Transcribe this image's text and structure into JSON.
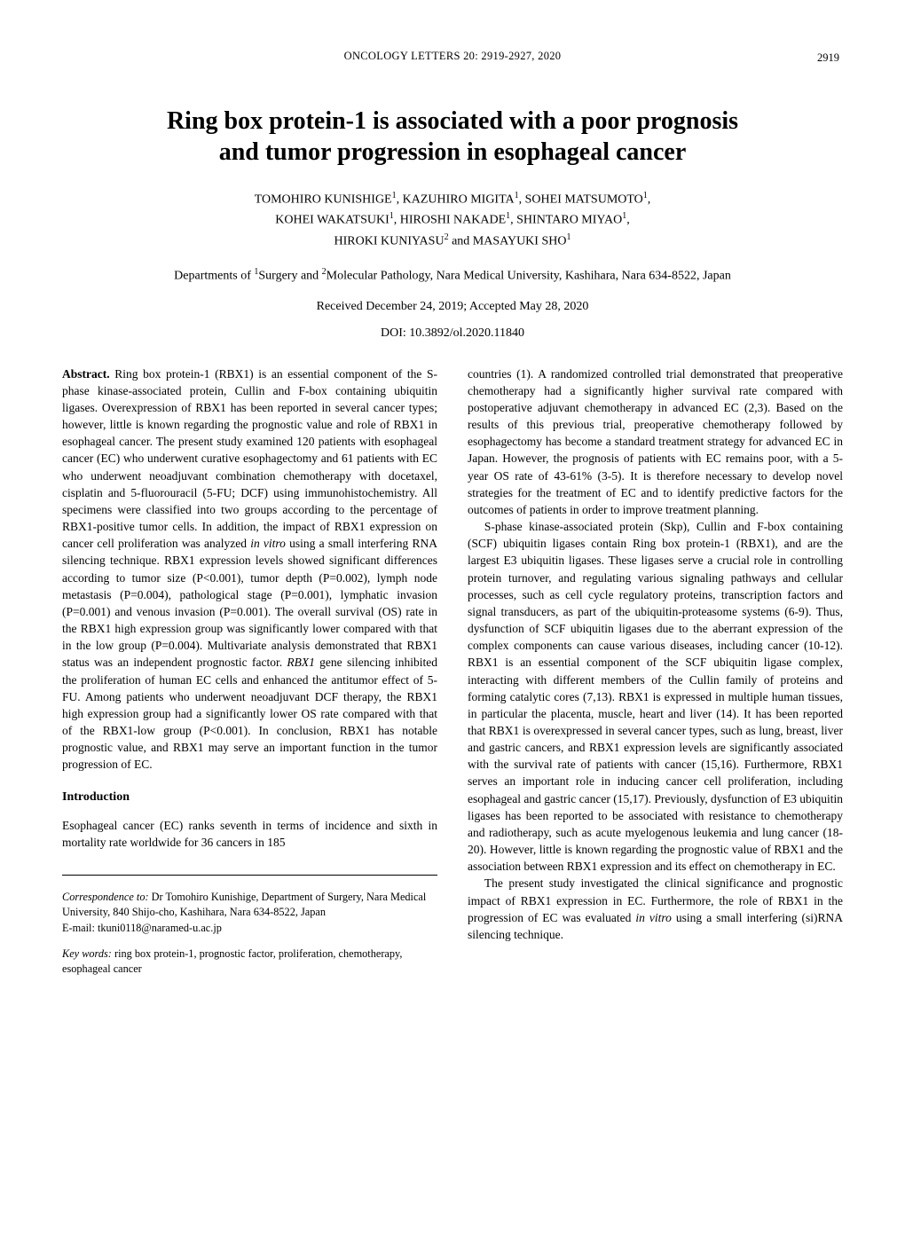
{
  "header": {
    "running_head": "ONCOLOGY LETTERS  20:  2919-2927,  2020",
    "page_number": "2919"
  },
  "title_lines": [
    "Ring box protein-1 is associated with a poor prognosis",
    "and tumor progression in esophageal cancer"
  ],
  "authors_html": "TOMOHIRO KUNISHIGE<sup>1</sup>,  KAZUHIRO MIGITA<sup>1</sup>,  SOHEI MATSUMOTO<sup>1</sup>,<br>KOHEI WAKATSUKI<sup>1</sup>,  HIROSHI NAKADE<sup>1</sup>,  SHINTARO MIYAO<sup>1</sup>,<br>HIROKI KUNIYASU<sup>2</sup>  and  MASAYUKI SHO<sup>1</sup>",
  "affiliations_html": "Departments of <sup>1</sup>Surgery and <sup>2</sup>Molecular Pathology, Nara Medical University, Kashihara, Nara 634-8522, Japan",
  "dates": "Received December 24, 2019;  Accepted May 28, 2020",
  "doi": "DOI: 10.3892/ol.2020.11840",
  "abstract": {
    "label": "Abstract.",
    "text": " Ring box protein-1 (RBX1) is an essential component of the S-phase kinase-associated protein, Cullin and F-box containing ubiquitin ligases. Overexpression of RBX1 has been reported in several cancer types; however, little is known regarding the prognostic value and role of RBX1 in esophageal cancer. The present study examined 120 patients with esophageal cancer (EC) who underwent curative esophagectomy and 61 patients with EC who underwent neoadjuvant combination chemotherapy with docetaxel, cisplatin and 5-fluorouracil (5-FU; DCF) using immunohistochemistry. All specimens were classified into two groups according to the percentage of RBX1-positive tumor cells. In addition, the impact of RBX1 expression on cancer cell proliferation was analyzed <span class=\"italic\">in vitro</span> using a small interfering RNA silencing technique. RBX1 expression levels showed significant differences according to tumor size (P<0.001), tumor depth (P=0.002), lymph node metastasis (P=0.004), pathological stage (P=0.001), lymphatic invasion (P=0.001) and venous invasion (P=0.001). The overall survival (OS) rate in the RBX1 high expression group was significantly lower compared with that in the low group (P=0.004). Multivariate analysis demonstrated that RBX1 status was an independent prognostic factor. <span class=\"italic\">RBX1</span> gene silencing inhibited the proliferation of human EC cells and enhanced the antitumor effect of 5-FU. Among patients who underwent neoadjuvant DCF therapy, the RBX1 high expression group had a significantly lower OS rate compared with that of the RBX1-low group (P<0.001). In conclusion, RBX1 has notable prognostic value, and RBX1 may serve an important function in the tumor progression of EC."
  },
  "intro_heading": "Introduction",
  "intro_p1": "Esophageal cancer (EC) ranks seventh in terms of incidence and sixth in mortality rate worldwide for 36 cancers in 185",
  "right_p1": "countries (1). A randomized controlled trial demonstrated that preoperative chemotherapy had a significantly higher survival rate compared with postoperative adjuvant chemotherapy in advanced EC (2,3). Based on the results of this previous trial, preoperative chemotherapy followed by esophagectomy has become a standard treatment strategy for advanced EC in Japan. However, the prognosis of patients with EC remains poor, with a 5-year OS rate of 43-61% (3-5). It is therefore necessary to develop novel strategies for the treatment of EC and to identify predictive factors for the outcomes of patients in order to improve treatment planning.",
  "right_p2": "S-phase kinase-associated protein (Skp), Cullin and F-box containing (SCF) ubiquitin ligases contain Ring box protein-1 (RBX1), and are the largest E3 ubiquitin ligases. These ligases serve a crucial role in controlling protein turnover, and regulating various signaling pathways and cellular processes, such as cell cycle regulatory proteins, transcription factors and signal transducers, as part of the ubiquitin-proteasome systems (6-9). Thus, dysfunction of SCF ubiquitin ligases due to the aberrant expression of the complex components can cause various diseases, including cancer (10-12). RBX1 is an essential component of the SCF ubiquitin ligase complex, interacting with different members of the Cullin family of proteins and forming catalytic cores (7,13). RBX1 is expressed in multiple human tissues, in particular the placenta, muscle, heart and liver (14). It has been reported that RBX1 is overexpressed in several cancer types, such as lung, breast, liver and gastric cancers, and RBX1 expression levels are significantly associated with the survival rate of patients with cancer (15,16). Furthermore, RBX1 serves an important role in inducing cancer cell proliferation, including esophageal and gastric cancer (15,17). Previously, dysfunction of E3 ubiquitin ligases has been reported to be associated with resistance to chemotherapy and radiotherapy, such as acute myelogenous leukemia and lung cancer (18-20). However, little is known regarding the prognostic value of RBX1 and the association between RBX1 expression and its effect on chemotherapy in EC.",
  "right_p3": "The present study investigated the clinical significance and prognostic impact of RBX1 expression in EC. Furthermore, the role of RBX1 in the progression of EC was evaluated <span class=\"italic\">in vitro</span> using a small interfering (si)RNA silencing technique.",
  "correspondence": {
    "label": "Correspondence to:",
    "text": " Dr Tomohiro Kunishige, Department of Surgery, Nara Medical University, 840 Shijo-cho, Kashihara, Nara 634-8522, Japan",
    "email": "E-mail: tkuni0118@naramed-u.ac.jp"
  },
  "keywords": {
    "label": "Key words:",
    "text": " ring box protein-1, prognostic factor, proliferation, chemotherapy, esophageal cancer"
  }
}
